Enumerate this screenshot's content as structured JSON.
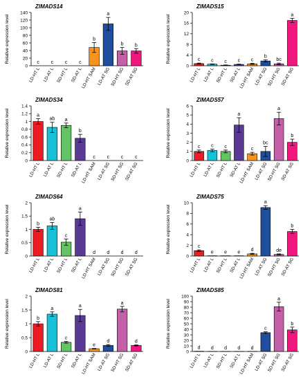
{
  "colors": [
    "#ed1c24",
    "#17c2d9",
    "#62c462",
    "#5a3a96",
    "#f7941d",
    "#1f4e9c",
    "#c460a8",
    "#f0187e"
  ],
  "chart_data": [
    {
      "type": "bar",
      "title": "ZlMADS14",
      "ylabel": "Relative expression level",
      "ylim": [
        0,
        140
      ],
      "yticks": [
        0,
        20,
        40,
        60,
        80,
        100,
        120,
        140
      ],
      "categories": [
        "LD-HT L",
        "LD-AT L",
        "SD-HT L",
        "SD-AT L",
        "LD-HT SAM",
        "LD-AT SG",
        "SD-HT SG",
        "SD-AT SG"
      ],
      "values": [
        0,
        0,
        0,
        0,
        48,
        110,
        39,
        39
      ],
      "errors": [
        0,
        0,
        0,
        0,
        13,
        17,
        9,
        6
      ],
      "letters": [
        "c",
        "c",
        "c",
        "c",
        "b",
        "a",
        "b",
        "b"
      ]
    },
    {
      "type": "bar",
      "title": "ZlMADS15",
      "ylabel": "Relative expression level",
      "ylim": [
        0,
        20
      ],
      "yticks": [
        0,
        4,
        8,
        12,
        16,
        20
      ],
      "categories": [
        "LD-HT L",
        "LD-AT L",
        "SD-HT L",
        "SD-AT L",
        "LD-HT SAM",
        "LD-AT SG",
        "SD-HT SG",
        "SD-AT SG"
      ],
      "values": [
        0.8,
        0.6,
        0.2,
        0.5,
        0.7,
        1.8,
        0.7,
        17
      ],
      "errors": [
        0.2,
        0.1,
        0.1,
        0.1,
        0.2,
        0.4,
        0.3,
        0.8
      ],
      "letters": [
        "c",
        "c",
        "c",
        "c",
        "c",
        "b",
        "bc",
        "a"
      ]
    },
    {
      "type": "bar",
      "title": "ZlMADS34",
      "ylabel": "Relative expression level",
      "ylim": [
        0,
        1.4
      ],
      "yticks": [
        0,
        0.2,
        0.4,
        0.6,
        0.8,
        1.0,
        1.2,
        1.4
      ],
      "categories": [
        "LD-HT L",
        "LD-AT L",
        "SD-HT L",
        "SD-AT L",
        "LD-HT SAM",
        "LD-AT SG",
        "SD-HT SG",
        "SD-AT SG"
      ],
      "values": [
        1.0,
        0.85,
        0.9,
        0.57,
        0,
        0,
        0,
        0
      ],
      "errors": [
        0.07,
        0.13,
        0.06,
        0.1,
        0,
        0,
        0,
        0
      ],
      "letters": [
        "a",
        "ab",
        "a",
        "b",
        "c",
        "c",
        "c",
        "c"
      ]
    },
    {
      "type": "bar",
      "title": "ZlMADS57",
      "ylabel": "Relative expression level",
      "ylim": [
        0,
        6
      ],
      "yticks": [
        0,
        1,
        2,
        3,
        4,
        5,
        6
      ],
      "categories": [
        "LD-HT L",
        "LD-AT L",
        "SD-HT L",
        "SD-AT L",
        "LD-HT SAM",
        "LD-AT SG",
        "SD-HT SG",
        "SD-AT SG"
      ],
      "values": [
        1.0,
        1.1,
        1.0,
        3.9,
        0.75,
        1.0,
        4.6,
        2.0
      ],
      "errors": [
        0.15,
        0.15,
        0.15,
        0.8,
        0.15,
        0.55,
        0.7,
        0.35
      ],
      "letters": [
        "c",
        "c",
        "c",
        "a",
        "c",
        "bc",
        "a",
        "b"
      ]
    },
    {
      "type": "bar",
      "title": "ZlMADS64",
      "ylabel": "Relative expression level",
      "ylim": [
        0,
        2
      ],
      "yticks": [
        0,
        0.5,
        1.0,
        1.5,
        2.0
      ],
      "categories": [
        "LD-HT L",
        "LD-AT L",
        "SD-HT L",
        "SD-AT L",
        "LD-HT SAM",
        "LD-AT SG",
        "SD-HT SG",
        "SD-AT SG"
      ],
      "values": [
        1.0,
        1.13,
        0.52,
        1.4,
        0,
        0,
        0,
        0
      ],
      "errors": [
        0.08,
        0.13,
        0.12,
        0.25,
        0,
        0,
        0,
        0
      ],
      "letters": [
        "b",
        "ab",
        "c",
        "a",
        "d",
        "d",
        "d",
        "d"
      ]
    },
    {
      "type": "bar",
      "title": "ZlMADS75",
      "ylabel": "Relative expression level",
      "ylim": [
        0,
        10
      ],
      "yticks": [
        0,
        2,
        4,
        6,
        8,
        10
      ],
      "categories": [
        "LD-HT L",
        "LD-AT L",
        "SD-HT L",
        "SD-AT L",
        "LD-HT SAM",
        "LD-AT SG",
        "SD-HT SG",
        "SD-AT SG"
      ],
      "values": [
        1.0,
        0.05,
        0.05,
        0.05,
        0.4,
        9.1,
        0.3,
        4.6
      ],
      "errors": [
        0.15,
        0,
        0,
        0,
        0.1,
        0.35,
        0.1,
        0.4
      ],
      "letters": [
        "c",
        "e",
        "e",
        "e",
        "d",
        "a",
        "de",
        "b"
      ]
    },
    {
      "type": "bar",
      "title": "ZlMADS81",
      "ylabel": "Relative expression level",
      "ylim": [
        0,
        2
      ],
      "yticks": [
        0,
        0.5,
        1.0,
        1.5,
        2.0
      ],
      "categories": [
        "LD-HT L",
        "LD-AT L",
        "SD-HT L",
        "SD-AT L",
        "LD-HT SAM",
        "LD-AT SG",
        "SD-HT SG",
        "SD-AT SG"
      ],
      "values": [
        1.0,
        1.35,
        0.33,
        1.3,
        0.1,
        0.22,
        1.53,
        0.22
      ],
      "errors": [
        0.08,
        0.08,
        0.03,
        0.22,
        0.01,
        0.03,
        0.1,
        0.02
      ],
      "letters": [
        "b",
        "a",
        "c",
        "a",
        "e",
        "d",
        "a",
        "d"
      ]
    },
    {
      "type": "bar",
      "title": "ZlMADS85",
      "ylabel": "Relative expression level",
      "ylim": [
        0,
        100
      ],
      "yticks": [
        0,
        10,
        20,
        30,
        40,
        50,
        60,
        70,
        80,
        90,
        100
      ],
      "categories": [
        "LD-HT L",
        "LD-AT L",
        "SD-HT L",
        "SD-AT L",
        "LD-HT SAM",
        "LD-AT SG",
        "SD-HT SG",
        "SD-AT SG"
      ],
      "values": [
        0.5,
        0.3,
        0.3,
        0.3,
        0.3,
        34,
        81,
        39
      ],
      "errors": [
        0,
        0,
        0,
        0,
        0,
        1.5,
        8,
        5
      ],
      "letters": [
        "d",
        "d",
        "d",
        "d",
        "d",
        "c",
        "a",
        "b"
      ]
    }
  ]
}
